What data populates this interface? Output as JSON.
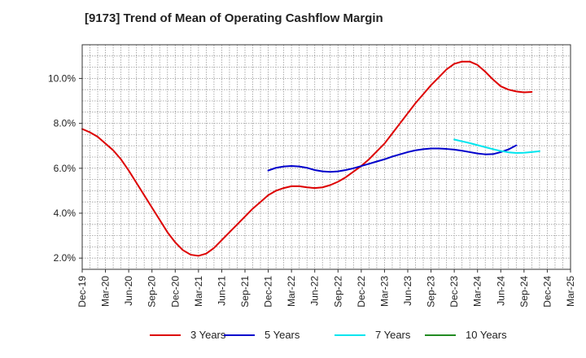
{
  "chart_data": {
    "type": "line",
    "title": "[9173]  Trend of Mean of Operating Cashflow Margin",
    "xlabel": "",
    "ylabel": "",
    "x_ticks": [
      "Dec-19",
      "Mar-20",
      "Jun-20",
      "Sep-20",
      "Dec-20",
      "Mar-21",
      "Jun-21",
      "Sep-21",
      "Dec-21",
      "Mar-22",
      "Jun-22",
      "Sep-22",
      "Dec-22",
      "Mar-23",
      "Jun-23",
      "Sep-23",
      "Dec-23",
      "Mar-24",
      "Jun-24",
      "Sep-24",
      "Dec-24",
      "Mar-25"
    ],
    "y_ticks": [
      "2.0%",
      "4.0%",
      "6.0%",
      "8.0%",
      "10.0%"
    ],
    "ylim": [
      1.5,
      11.5
    ],
    "grid": true,
    "legend_position": "bottom",
    "series": [
      {
        "name": "3 Years",
        "color": "#dd0000",
        "points": [
          [
            "Dec-19",
            7.75
          ],
          [
            "Jan-20",
            7.6
          ],
          [
            "Feb-20",
            7.4
          ],
          [
            "Mar-20",
            7.1
          ],
          [
            "Apr-20",
            6.8
          ],
          [
            "May-20",
            6.4
          ],
          [
            "Jun-20",
            5.9
          ],
          [
            "Jul-20",
            5.35
          ],
          [
            "Aug-20",
            4.8
          ],
          [
            "Sep-20",
            4.25
          ],
          [
            "Oct-20",
            3.7
          ],
          [
            "Nov-20",
            3.15
          ],
          [
            "Dec-20",
            2.7
          ],
          [
            "Jan-21",
            2.35
          ],
          [
            "Feb-21",
            2.15
          ],
          [
            "Mar-21",
            2.1
          ],
          [
            "Apr-21",
            2.2
          ],
          [
            "May-21",
            2.45
          ],
          [
            "Jun-21",
            2.8
          ],
          [
            "Jul-21",
            3.15
          ],
          [
            "Aug-21",
            3.5
          ],
          [
            "Sep-21",
            3.85
          ],
          [
            "Oct-21",
            4.2
          ],
          [
            "Nov-21",
            4.5
          ],
          [
            "Dec-21",
            4.8
          ],
          [
            "Jan-22",
            5.0
          ],
          [
            "Feb-22",
            5.12
          ],
          [
            "Mar-22",
            5.2
          ],
          [
            "Apr-22",
            5.2
          ],
          [
            "May-22",
            5.15
          ],
          [
            "Jun-22",
            5.12
          ],
          [
            "Jul-22",
            5.15
          ],
          [
            "Aug-22",
            5.25
          ],
          [
            "Sep-22",
            5.4
          ],
          [
            "Oct-22",
            5.6
          ],
          [
            "Nov-22",
            5.85
          ],
          [
            "Dec-22",
            6.1
          ],
          [
            "Jan-23",
            6.4
          ],
          [
            "Feb-23",
            6.75
          ],
          [
            "Mar-23",
            7.1
          ],
          [
            "Apr-23",
            7.55
          ],
          [
            "May-23",
            8.0
          ],
          [
            "Jun-23",
            8.45
          ],
          [
            "Jul-23",
            8.9
          ],
          [
            "Aug-23",
            9.3
          ],
          [
            "Sep-23",
            9.7
          ],
          [
            "Oct-23",
            10.05
          ],
          [
            "Nov-23",
            10.4
          ],
          [
            "Dec-23",
            10.65
          ],
          [
            "Jan-24",
            10.75
          ],
          [
            "Feb-24",
            10.75
          ],
          [
            "Mar-24",
            10.6
          ],
          [
            "Apr-24",
            10.3
          ],
          [
            "May-24",
            9.95
          ],
          [
            "Jun-24",
            9.65
          ],
          [
            "Jul-24",
            9.5
          ],
          [
            "Aug-24",
            9.42
          ],
          [
            "Sep-24",
            9.38
          ],
          [
            "Oct-24",
            9.4
          ]
        ]
      },
      {
        "name": "5 Years",
        "color": "#0000cc",
        "points": [
          [
            "Dec-21",
            5.9
          ],
          [
            "Jan-22",
            6.02
          ],
          [
            "Feb-22",
            6.08
          ],
          [
            "Mar-22",
            6.1
          ],
          [
            "Apr-22",
            6.08
          ],
          [
            "May-22",
            6.02
          ],
          [
            "Jun-22",
            5.92
          ],
          [
            "Jul-22",
            5.86
          ],
          [
            "Aug-22",
            5.84
          ],
          [
            "Sep-22",
            5.86
          ],
          [
            "Oct-22",
            5.92
          ],
          [
            "Nov-22",
            6.0
          ],
          [
            "Dec-22",
            6.1
          ],
          [
            "Jan-23",
            6.2
          ],
          [
            "Feb-23",
            6.3
          ],
          [
            "Mar-23",
            6.4
          ],
          [
            "Apr-23",
            6.52
          ],
          [
            "May-23",
            6.62
          ],
          [
            "Jun-23",
            6.72
          ],
          [
            "Jul-23",
            6.8
          ],
          [
            "Aug-23",
            6.85
          ],
          [
            "Sep-23",
            6.88
          ],
          [
            "Oct-23",
            6.88
          ],
          [
            "Nov-23",
            6.86
          ],
          [
            "Dec-23",
            6.83
          ],
          [
            "Jan-24",
            6.78
          ],
          [
            "Feb-24",
            6.72
          ],
          [
            "Mar-24",
            6.66
          ],
          [
            "Apr-24",
            6.62
          ],
          [
            "May-24",
            6.63
          ],
          [
            "Jun-24",
            6.72
          ],
          [
            "Jul-24",
            6.84
          ],
          [
            "Aug-24",
            7.02
          ]
        ]
      },
      {
        "name": "7 Years",
        "color": "#00e5ee",
        "points": [
          [
            "Dec-23",
            7.28
          ],
          [
            "Jan-24",
            7.2
          ],
          [
            "Feb-24",
            7.12
          ],
          [
            "Mar-24",
            7.03
          ],
          [
            "Apr-24",
            6.94
          ],
          [
            "May-24",
            6.85
          ],
          [
            "Jun-24",
            6.77
          ],
          [
            "Jul-24",
            6.71
          ],
          [
            "Aug-24",
            6.68
          ],
          [
            "Sep-24",
            6.69
          ],
          [
            "Oct-24",
            6.72
          ],
          [
            "Nov-24",
            6.76
          ]
        ]
      },
      {
        "name": "10 Years",
        "color": "#228b22",
        "points": []
      }
    ]
  }
}
